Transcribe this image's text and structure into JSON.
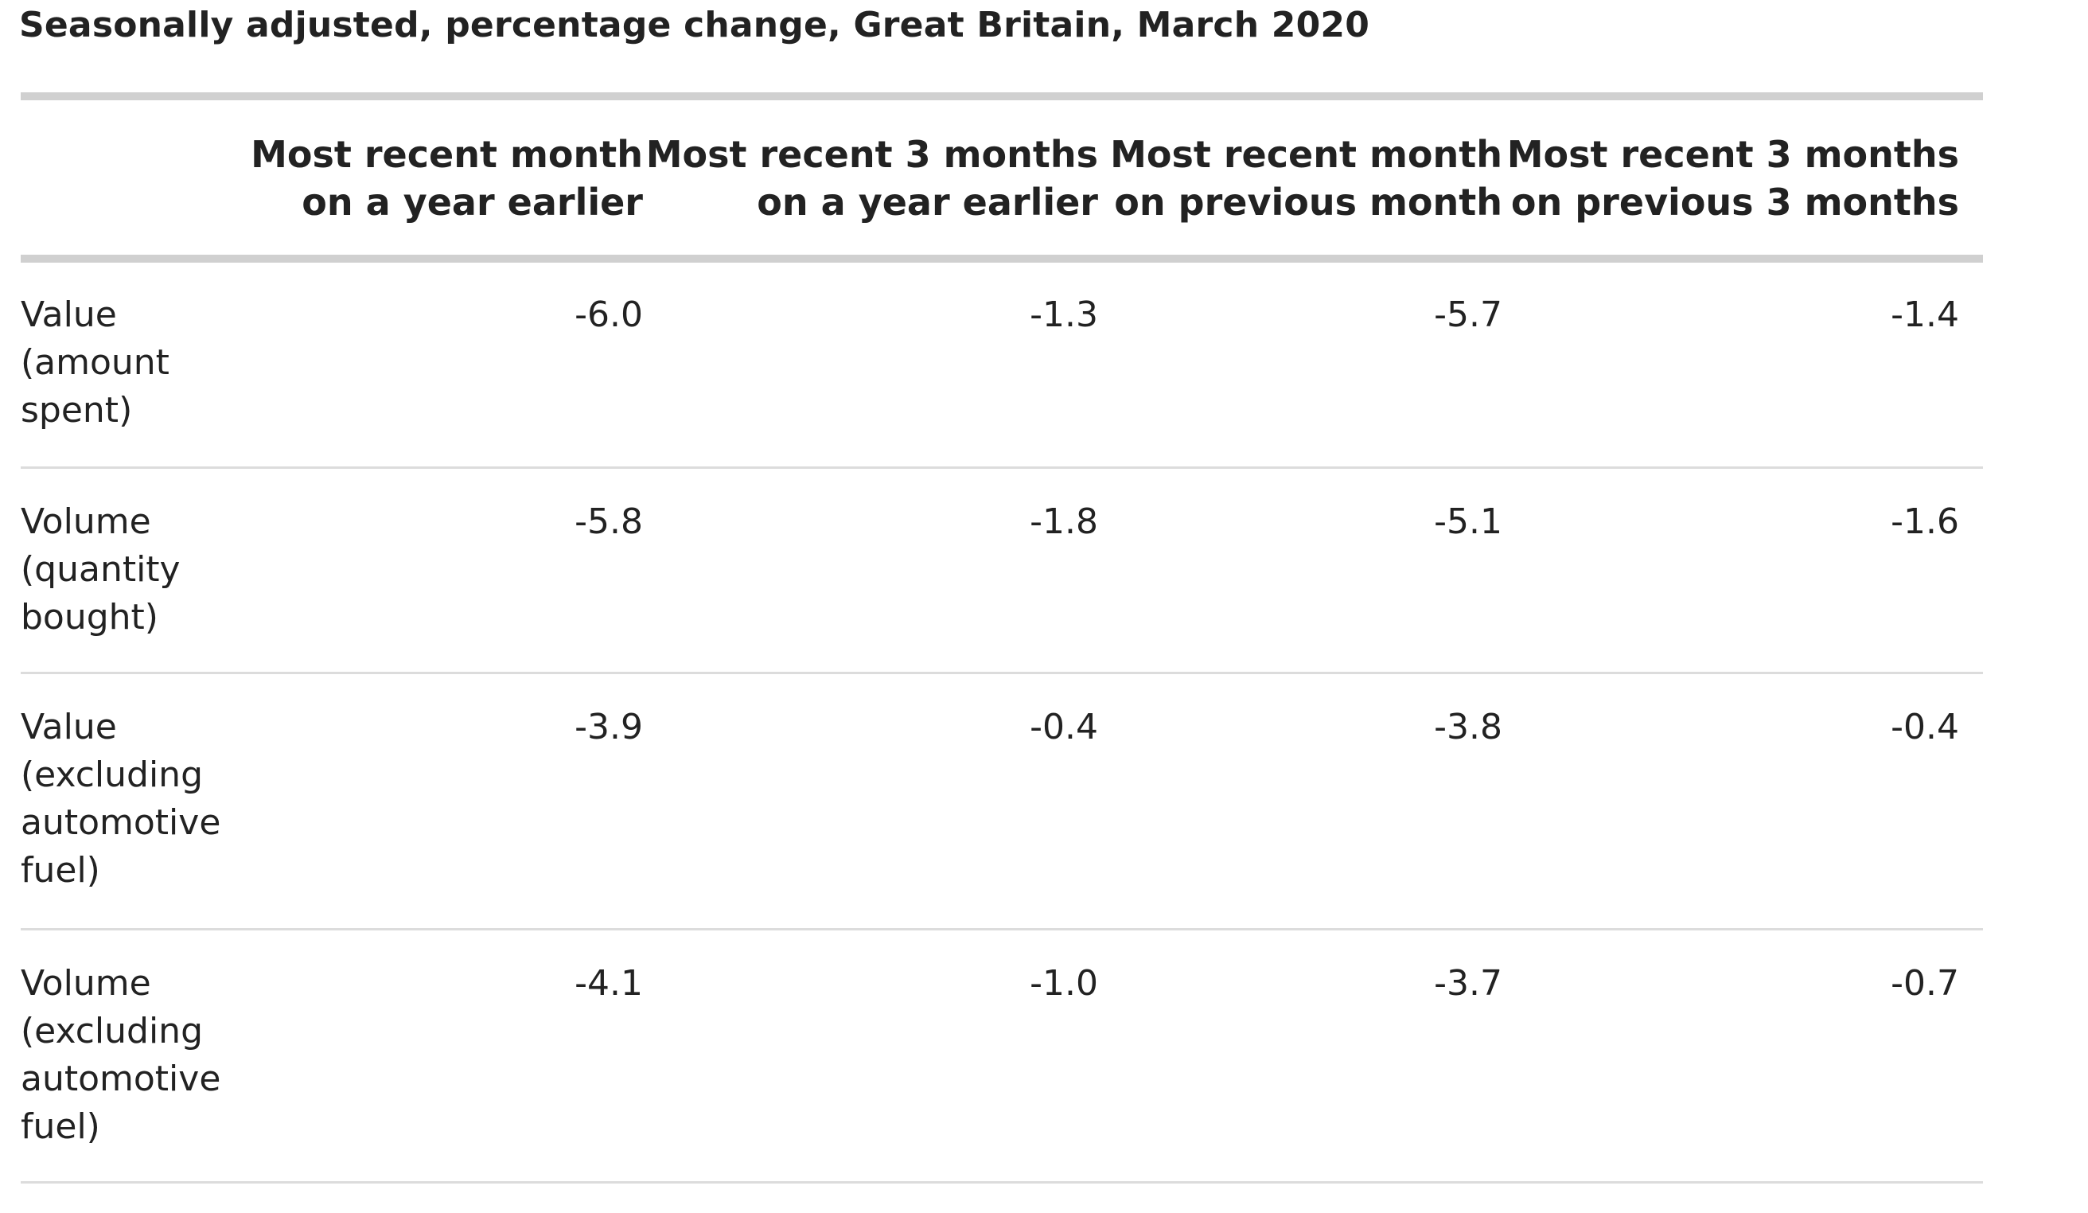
{
  "subtitle": "Seasonally adjusted, percentage change, Great Britain, March 2020",
  "table": {
    "columns": [
      {
        "line1": "Most recent month",
        "line2": "on a year earlier"
      },
      {
        "line1": "Most recent 3 months",
        "line2": "on a year earlier"
      },
      {
        "line1": "Most recent month",
        "line2": "on previous month"
      },
      {
        "line1": "Most recent 3 months",
        "line2": "on previous 3 months"
      }
    ],
    "rows": [
      {
        "label": [
          "Value",
          "(amount",
          "spent)"
        ],
        "values": [
          "-6.0",
          "-1.3",
          "-5.7",
          "-1.4"
        ]
      },
      {
        "label": [
          "Volume",
          "(quantity",
          "bought)"
        ],
        "values": [
          "-5.8",
          "-1.8",
          "-5.1",
          "-1.6"
        ]
      },
      {
        "label": [
          "Value",
          "(excluding",
          "automotive",
          "fuel)"
        ],
        "values": [
          "-3.9",
          "-0.4",
          "-3.8",
          "-0.4"
        ]
      },
      {
        "label": [
          "Volume",
          "(excluding",
          "automotive",
          "fuel)"
        ],
        "values": [
          "-4.1",
          "-1.0",
          "-3.7",
          "-0.7"
        ]
      }
    ]
  }
}
